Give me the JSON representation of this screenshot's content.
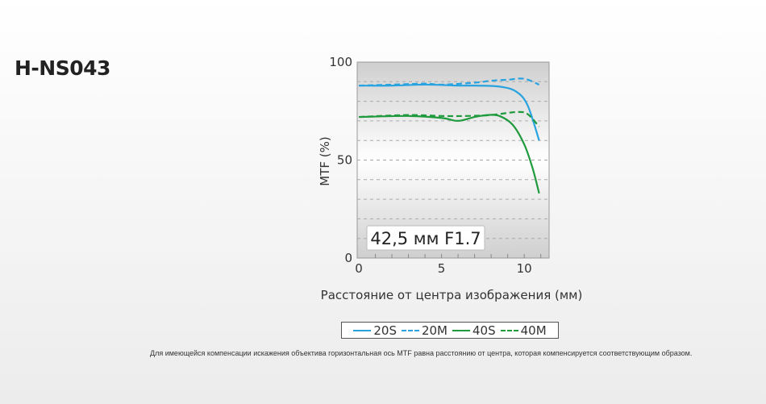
{
  "title": "H-NS043",
  "chart_data": {
    "type": "line",
    "xlabel": "Расстояние от центра изображения (мм)",
    "ylabel": "MTF (%)",
    "xlim": [
      0,
      11.1
    ],
    "ylim": [
      0,
      100
    ],
    "xticks": [
      "0",
      "5",
      "10"
    ],
    "yticks": [
      "0",
      "50",
      "100"
    ],
    "grid": true,
    "annotation": "42,5 мм F1.7",
    "legend_position": "bottom",
    "series": [
      {
        "name": "20S",
        "color": "#29a3e0",
        "style": "solid",
        "points": [
          [
            0,
            88
          ],
          [
            2,
            88
          ],
          [
            4,
            88.5
          ],
          [
            6,
            88
          ],
          [
            7,
            88
          ],
          [
            8.5,
            87.5
          ],
          [
            9.5,
            85
          ],
          [
            10.2,
            78
          ],
          [
            10.9,
            60
          ]
        ]
      },
      {
        "name": "20M",
        "color": "#29a3e0",
        "style": "dashed",
        "points": [
          [
            0,
            88
          ],
          [
            2,
            88.5
          ],
          [
            4,
            89
          ],
          [
            5,
            88.5
          ],
          [
            7,
            89.5
          ],
          [
            8,
            90.5
          ],
          [
            9,
            91
          ],
          [
            10,
            91.5
          ],
          [
            10.9,
            88.5
          ]
        ]
      },
      {
        "name": "40S",
        "color": "#1f9a3c",
        "style": "solid",
        "points": [
          [
            0,
            72
          ],
          [
            3,
            72.5
          ],
          [
            5,
            71.5
          ],
          [
            6,
            70
          ],
          [
            7,
            72
          ],
          [
            7.8,
            73
          ],
          [
            8.5,
            72.5
          ],
          [
            9.3,
            68
          ],
          [
            10,
            58
          ],
          [
            10.5,
            46
          ],
          [
            10.9,
            33
          ]
        ]
      },
      {
        "name": "40M",
        "color": "#1f9a3c",
        "style": "dashed",
        "points": [
          [
            0,
            72
          ],
          [
            3,
            73
          ],
          [
            5,
            72.5
          ],
          [
            6.5,
            72.5
          ],
          [
            8,
            73
          ],
          [
            9.5,
            74.5
          ],
          [
            10.2,
            73.5
          ],
          [
            10.9,
            67
          ]
        ]
      }
    ]
  },
  "note": "Для имеющейся компенсации искажения объектива горизонтальная ось MTF равна расстоянию от центра, которая компенсируется соответствующим образом."
}
